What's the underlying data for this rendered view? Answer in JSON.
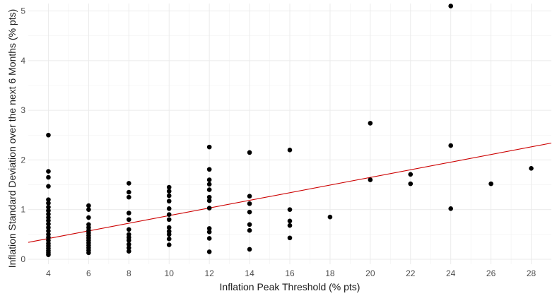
{
  "chart_data": {
    "type": "scatter",
    "title": "",
    "xlabel": "Inflation Peak Threshold (% pts)",
    "ylabel": "Inflation Standard Deviation over the next 6 Months (% pts)",
    "xlim": [
      3,
      29
    ],
    "ylim": [
      -0.1,
      5.15
    ],
    "x_ticks": [
      4,
      6,
      8,
      10,
      12,
      14,
      16,
      18,
      20,
      22,
      24,
      26,
      28
    ],
    "y_ticks": [
      0,
      1,
      2,
      3,
      4,
      5
    ],
    "grid": true,
    "point_color": "#000000",
    "trend_color": "#cc0000",
    "trend_line": {
      "x": [
        3,
        29
      ],
      "y": [
        0.34,
        2.34
      ]
    },
    "points": [
      {
        "x": 4,
        "y": 2.5
      },
      {
        "x": 4,
        "y": 1.77
      },
      {
        "x": 4,
        "y": 1.65
      },
      {
        "x": 4,
        "y": 1.47
      },
      {
        "x": 4,
        "y": 1.2
      },
      {
        "x": 4,
        "y": 1.13
      },
      {
        "x": 4,
        "y": 1.05
      },
      {
        "x": 4,
        "y": 0.98
      },
      {
        "x": 4,
        "y": 0.91
      },
      {
        "x": 4,
        "y": 0.84
      },
      {
        "x": 4,
        "y": 0.78
      },
      {
        "x": 4,
        "y": 0.71
      },
      {
        "x": 4,
        "y": 0.64
      },
      {
        "x": 4,
        "y": 0.57
      },
      {
        "x": 4,
        "y": 0.5
      },
      {
        "x": 4,
        "y": 0.44
      },
      {
        "x": 4,
        "y": 0.38
      },
      {
        "x": 4,
        "y": 0.32
      },
      {
        "x": 4,
        "y": 0.27
      },
      {
        "x": 4,
        "y": 0.22
      },
      {
        "x": 4,
        "y": 0.17
      },
      {
        "x": 4,
        "y": 0.13
      },
      {
        "x": 4,
        "y": 0.09
      },
      {
        "x": 6,
        "y": 1.08
      },
      {
        "x": 6,
        "y": 1.0
      },
      {
        "x": 6,
        "y": 0.84
      },
      {
        "x": 6,
        "y": 0.7
      },
      {
        "x": 6,
        "y": 0.64
      },
      {
        "x": 6,
        "y": 0.58
      },
      {
        "x": 6,
        "y": 0.53
      },
      {
        "x": 6,
        "y": 0.48
      },
      {
        "x": 6,
        "y": 0.43
      },
      {
        "x": 6,
        "y": 0.38
      },
      {
        "x": 6,
        "y": 0.33
      },
      {
        "x": 6,
        "y": 0.28
      },
      {
        "x": 6,
        "y": 0.23
      },
      {
        "x": 6,
        "y": 0.18
      },
      {
        "x": 6,
        "y": 0.13
      },
      {
        "x": 8,
        "y": 1.53
      },
      {
        "x": 8,
        "y": 1.35
      },
      {
        "x": 8,
        "y": 1.25
      },
      {
        "x": 8,
        "y": 0.93
      },
      {
        "x": 8,
        "y": 0.8
      },
      {
        "x": 8,
        "y": 0.6
      },
      {
        "x": 8,
        "y": 0.5
      },
      {
        "x": 8,
        "y": 0.44
      },
      {
        "x": 8,
        "y": 0.38
      },
      {
        "x": 8,
        "y": 0.3
      },
      {
        "x": 8,
        "y": 0.23
      },
      {
        "x": 8,
        "y": 0.16
      },
      {
        "x": 10,
        "y": 1.45
      },
      {
        "x": 10,
        "y": 1.37
      },
      {
        "x": 10,
        "y": 1.28
      },
      {
        "x": 10,
        "y": 1.17
      },
      {
        "x": 10,
        "y": 1.02
      },
      {
        "x": 10,
        "y": 0.9
      },
      {
        "x": 10,
        "y": 0.8
      },
      {
        "x": 10,
        "y": 0.64
      },
      {
        "x": 10,
        "y": 0.56
      },
      {
        "x": 10,
        "y": 0.5
      },
      {
        "x": 10,
        "y": 0.41
      },
      {
        "x": 10,
        "y": 0.29
      },
      {
        "x": 12,
        "y": 2.26
      },
      {
        "x": 12,
        "y": 1.81
      },
      {
        "x": 12,
        "y": 1.6
      },
      {
        "x": 12,
        "y": 1.51
      },
      {
        "x": 12,
        "y": 1.4
      },
      {
        "x": 12,
        "y": 1.25
      },
      {
        "x": 12,
        "y": 1.18
      },
      {
        "x": 12,
        "y": 1.03
      },
      {
        "x": 12,
        "y": 0.62
      },
      {
        "x": 12,
        "y": 0.55
      },
      {
        "x": 12,
        "y": 0.42
      },
      {
        "x": 12,
        "y": 0.15
      },
      {
        "x": 14,
        "y": 2.15
      },
      {
        "x": 14,
        "y": 1.27
      },
      {
        "x": 14,
        "y": 1.12
      },
      {
        "x": 14,
        "y": 0.95
      },
      {
        "x": 14,
        "y": 0.7
      },
      {
        "x": 14,
        "y": 0.58
      },
      {
        "x": 14,
        "y": 0.2
      },
      {
        "x": 16,
        "y": 2.2
      },
      {
        "x": 16,
        "y": 1.0
      },
      {
        "x": 16,
        "y": 0.77
      },
      {
        "x": 16,
        "y": 0.68
      },
      {
        "x": 16,
        "y": 0.43
      },
      {
        "x": 18,
        "y": 0.85
      },
      {
        "x": 20,
        "y": 2.74
      },
      {
        "x": 20,
        "y": 1.6
      },
      {
        "x": 22,
        "y": 1.71
      },
      {
        "x": 22,
        "y": 1.52
      },
      {
        "x": 24,
        "y": 5.1
      },
      {
        "x": 24,
        "y": 2.29
      },
      {
        "x": 24,
        "y": 1.02
      },
      {
        "x": 26,
        "y": 1.52
      },
      {
        "x": 28,
        "y": 1.83
      }
    ]
  }
}
